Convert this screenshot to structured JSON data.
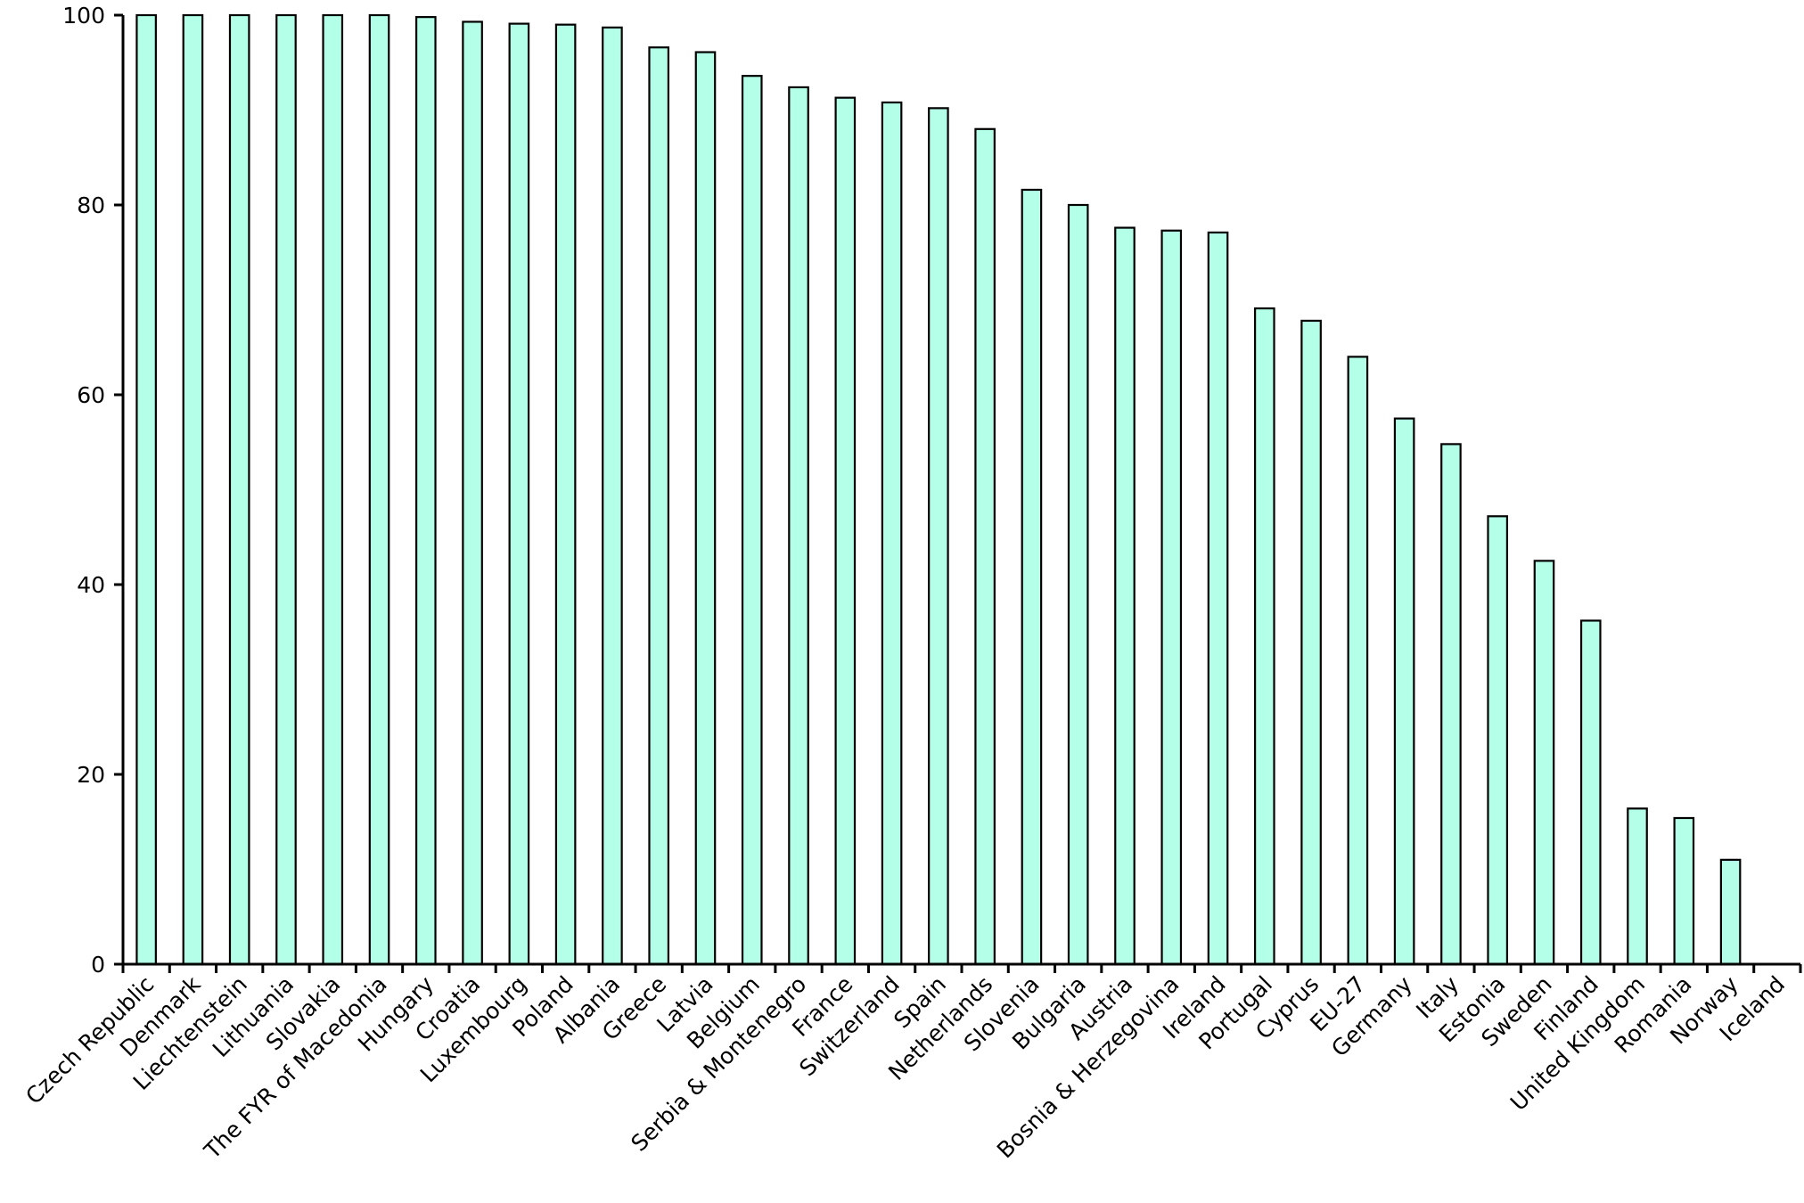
{
  "chart_data": {
    "type": "bar",
    "title": "",
    "xlabel": "",
    "ylabel": "",
    "ylim": [
      0,
      100
    ],
    "yticks": [
      0,
      20,
      40,
      60,
      80,
      100
    ],
    "grid": false,
    "bar_color": "#b3ffe8",
    "categories": [
      "Czech Republic",
      "Denmark",
      "Liechtenstein",
      "Lithuania",
      "Slovakia",
      "The FYR of Macedonia",
      "Hungary",
      "Croatia",
      "Luxembourg",
      "Poland",
      "Albania",
      "Greece",
      "Latvia",
      "Belgium",
      "Serbia & Montenegro",
      "France",
      "Switzerland",
      "Spain",
      "Netherlands",
      "Slovenia",
      "Bulgaria",
      "Austria",
      "Bosnia & Herzegovina",
      "Ireland",
      "Portugal",
      "Cyprus",
      "EU-27",
      "Germany",
      "Italy",
      "Estonia",
      "Sweden",
      "Finland",
      "United Kingdom",
      "Romania",
      "Norway",
      "Iceland"
    ],
    "values": [
      100,
      100,
      100,
      100,
      100,
      100,
      99.8,
      99.3,
      99.1,
      99.0,
      98.7,
      96.6,
      96.1,
      93.6,
      92.4,
      91.3,
      90.8,
      90.2,
      88.0,
      81.6,
      80.0,
      77.6,
      77.3,
      77.1,
      69.1,
      67.8,
      64.0,
      57.5,
      54.8,
      47.2,
      42.5,
      36.2,
      16.4,
      15.4,
      11.0,
      0
    ]
  }
}
